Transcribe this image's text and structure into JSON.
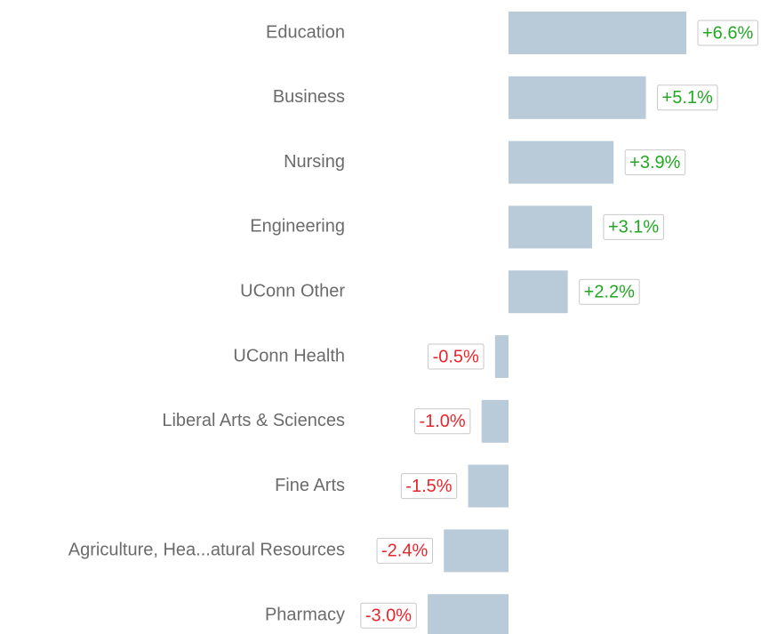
{
  "chart_data": {
    "type": "bar",
    "orientation": "horizontal",
    "categories": [
      "Education",
      "Business",
      "Nursing",
      "Engineering",
      "UConn Other",
      "UConn Health",
      "Liberal Arts & Sciences",
      "Fine Arts",
      "Agriculture, Hea...atural Resources",
      "Pharmacy"
    ],
    "values": [
      6.6,
      5.1,
      3.9,
      3.1,
      2.2,
      -0.5,
      -1.0,
      -1.5,
      -2.4,
      -3.0
    ],
    "value_labels": [
      "+6.6%",
      "+5.1%",
      "+3.9%",
      "+3.1%",
      "+2.2%",
      "-0.5%",
      "-1.0%",
      "-1.5%",
      "-2.4%",
      "-3.0%"
    ],
    "color": "#b9cad9",
    "positive_color": "#22a722",
    "negative_color": "#e8262b"
  }
}
